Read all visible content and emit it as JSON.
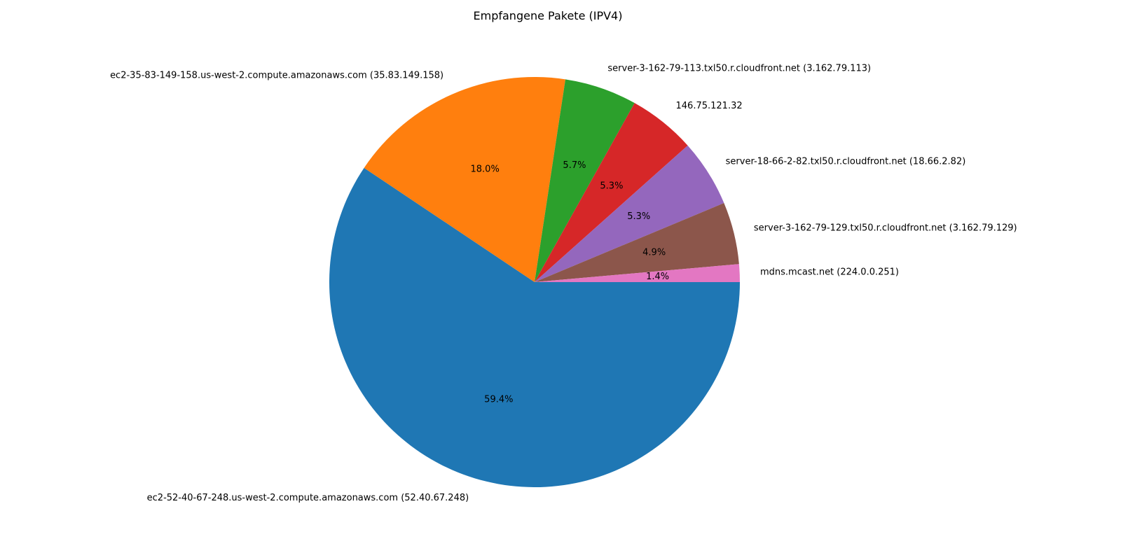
{
  "chart_data": {
    "type": "pie",
    "title": "Empfangene Pakete (IPV4)",
    "start_angle_deg": 0,
    "direction": "clockwise",
    "slices": [
      {
        "label": "ec2-52-40-67-248.us-west-2.compute.amazonaws.com (52.40.67.248)",
        "value": 59.4,
        "pct_label": "59.4%",
        "color": "#1f77b4"
      },
      {
        "label": "ec2-35-83-149-158.us-west-2.compute.amazonaws.com (35.83.149.158)",
        "value": 18.0,
        "pct_label": "18.0%",
        "color": "#ff7f0e"
      },
      {
        "label": "server-3-162-79-113.txl50.r.cloudfront.net (3.162.79.113)",
        "value": 5.7,
        "pct_label": "5.7%",
        "color": "#2ca02c"
      },
      {
        "label": "146.75.121.32",
        "value": 5.3,
        "pct_label": "5.3%",
        "color": "#d62728"
      },
      {
        "label": "server-18-66-2-82.txl50.r.cloudfront.net (18.66.2.82)",
        "value": 5.3,
        "pct_label": "5.3%",
        "color": "#9467bd"
      },
      {
        "label": "server-3-162-79-129.txl50.r.cloudfront.net (3.162.79.129)",
        "value": 4.9,
        "pct_label": "4.9%",
        "color": "#8c564b"
      },
      {
        "label": "mdns.mcast.net (224.0.0.251)",
        "value": 1.4,
        "pct_label": "1.4%",
        "color": "#e377c2"
      }
    ]
  }
}
